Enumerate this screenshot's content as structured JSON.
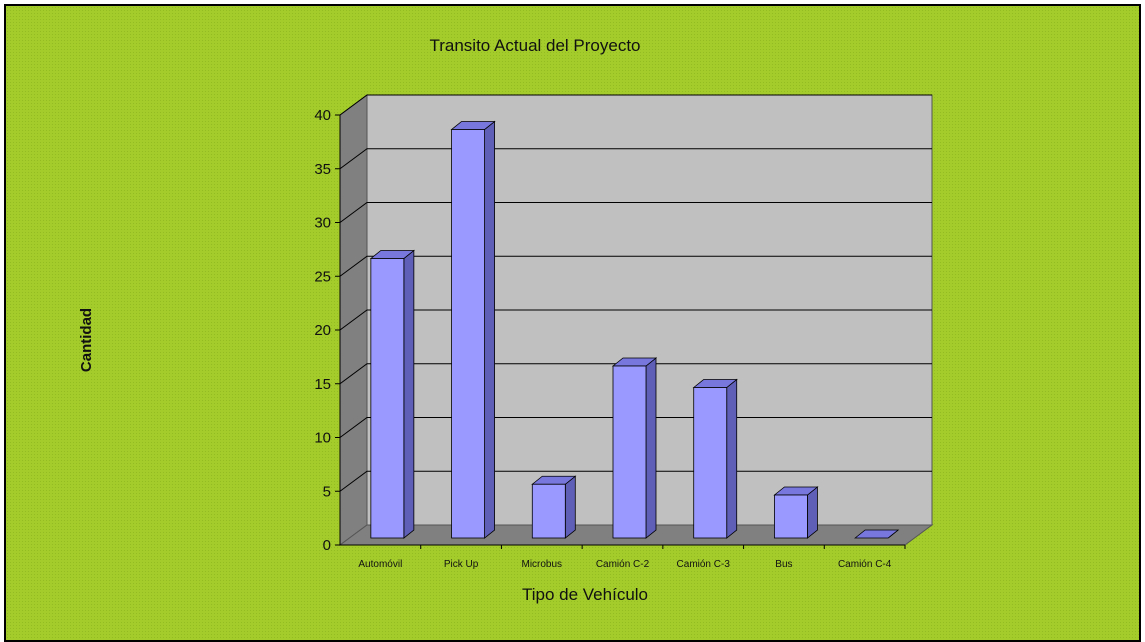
{
  "chart_data": {
    "type": "bar",
    "title": "Transito Actual del Proyecto",
    "xlabel": "Tipo de Vehículo",
    "ylabel": "Cantidad",
    "categories": [
      "Automóvil",
      "Pick Up",
      "Microbus",
      "Camión C-2",
      "Camión C-3",
      "Bus",
      "Camión C-4"
    ],
    "values": [
      26,
      38,
      5,
      16,
      14,
      4,
      0
    ],
    "ylim": [
      0,
      40
    ],
    "yticks": [
      "0",
      "5",
      "10",
      "15",
      "20",
      "25",
      "30",
      "35",
      "40"
    ],
    "grid": true,
    "legend": "none",
    "style": "3d-column"
  },
  "colors": {
    "background": "#a4cd2b",
    "wall": "#c0c0c0",
    "side_wall": "#808080",
    "floor": "#808080",
    "bar_front": "#9999ff",
    "bar_side": "#5f5fb8",
    "bar_top": "#7777dd",
    "grid": "#000000"
  }
}
